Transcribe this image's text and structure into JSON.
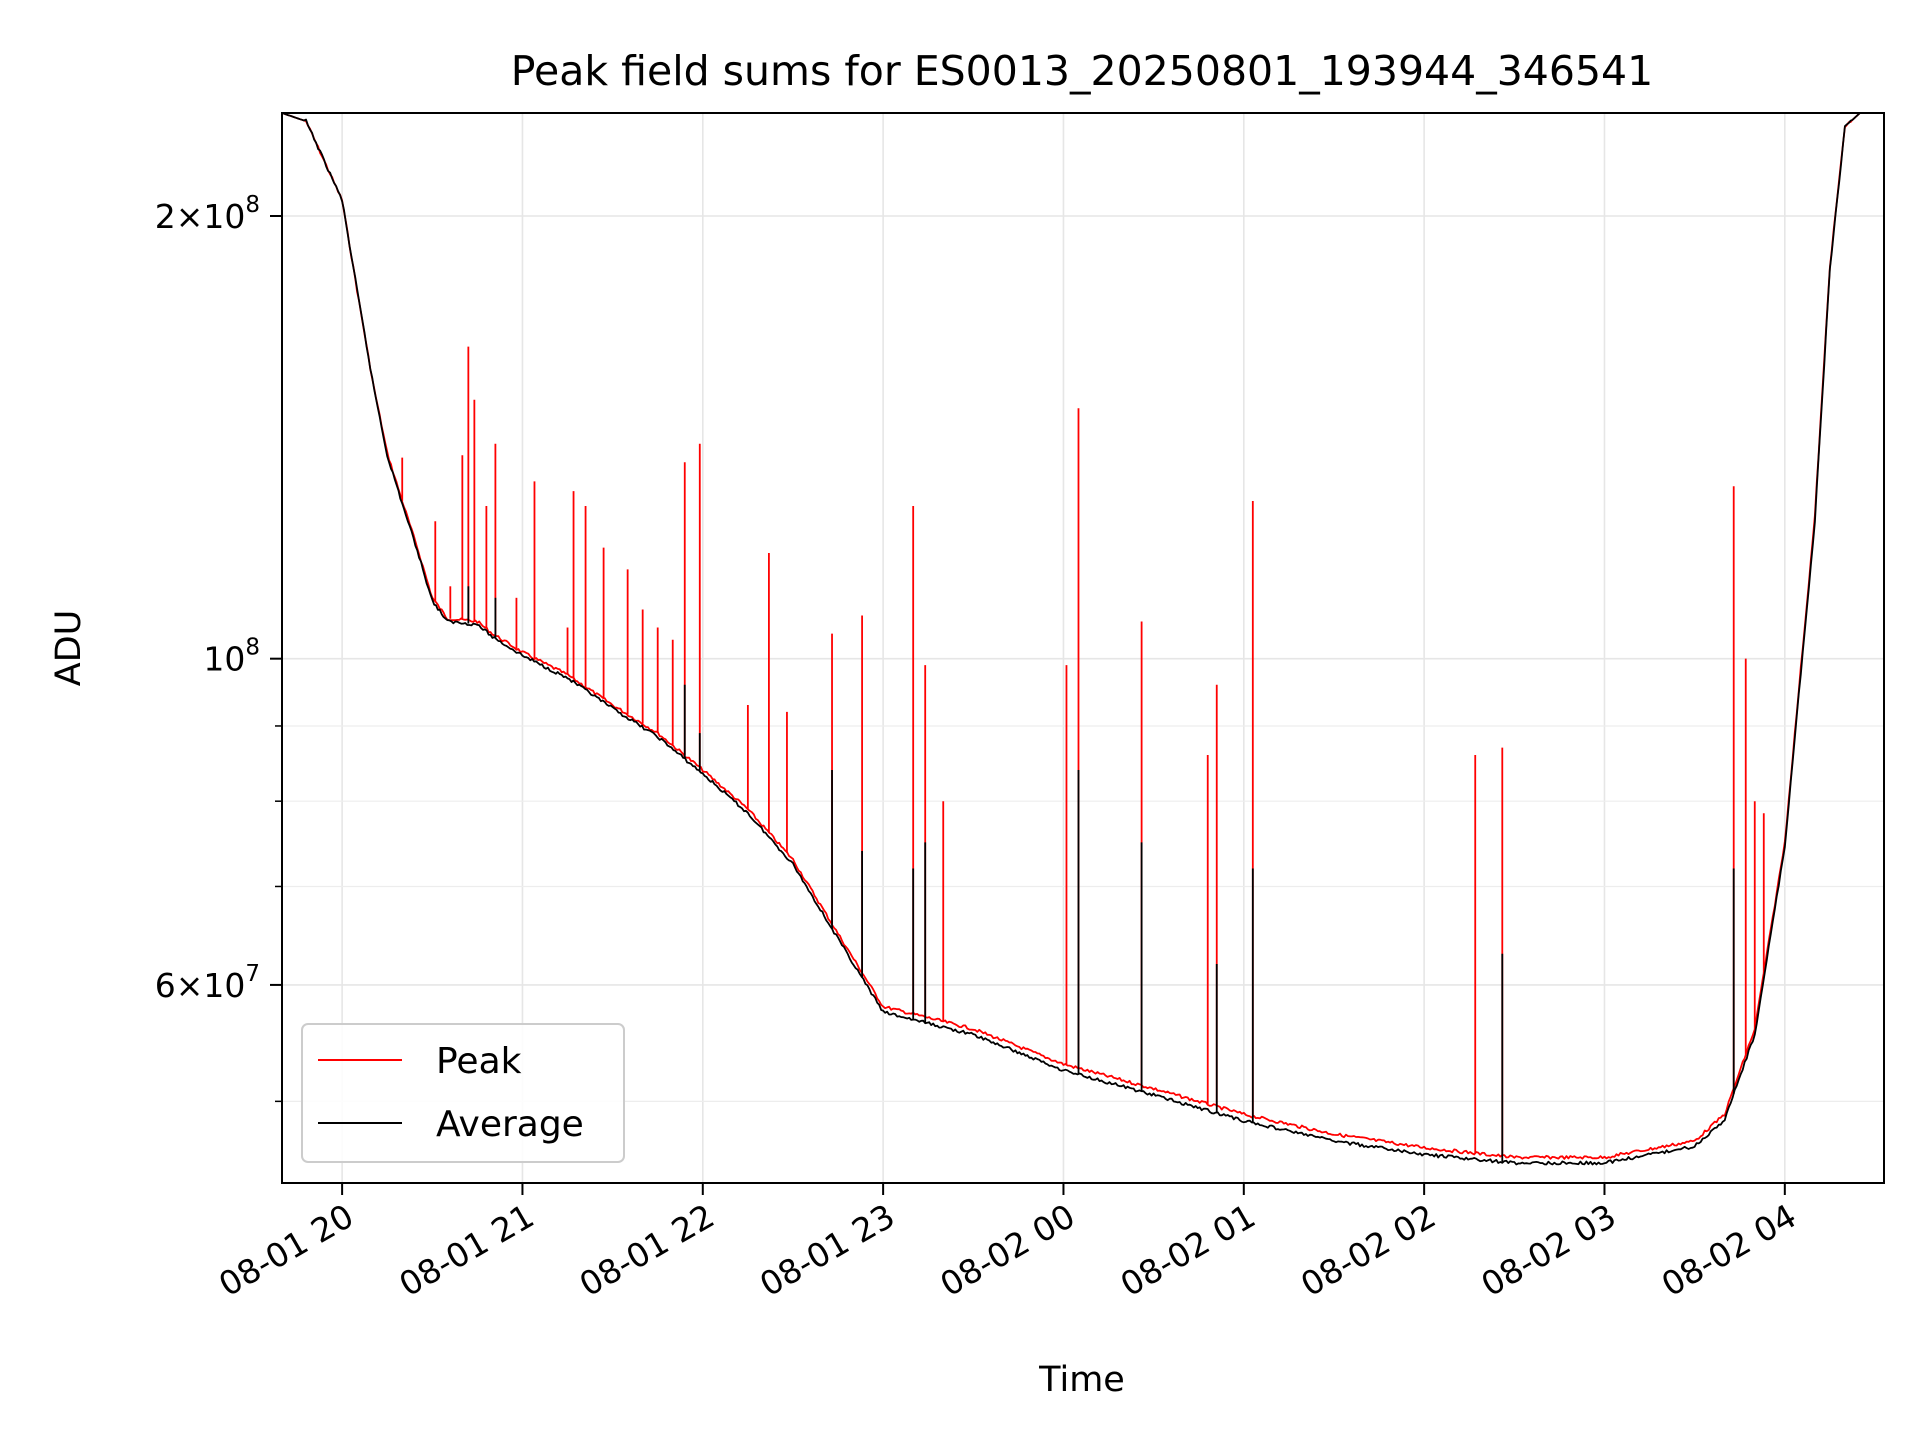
{
  "chart_data": {
    "type": "line",
    "title": "Peak field sums for ES0013_20250801_193944_346541",
    "xlabel": "Time",
    "ylabel": "ADU",
    "y_scale": "log",
    "ylim": [
      44000000,
      235000000
    ],
    "xlim": [
      "2025-08-01 19:40",
      "2025-08-02 04:33"
    ],
    "grid": true,
    "legend_position": "lower-left",
    "x_ticks": [
      {
        "t": "2025-08-01 20:00",
        "label": "08-01 20"
      },
      {
        "t": "2025-08-01 21:00",
        "label": "08-01 21"
      },
      {
        "t": "2025-08-01 22:00",
        "label": "08-01 22"
      },
      {
        "t": "2025-08-01 23:00",
        "label": "08-01 23"
      },
      {
        "t": "2025-08-02 00:00",
        "label": "08-02 00"
      },
      {
        "t": "2025-08-02 01:00",
        "label": "08-02 01"
      },
      {
        "t": "2025-08-02 02:00",
        "label": "08-02 02"
      },
      {
        "t": "2025-08-02 03:00",
        "label": "08-02 03"
      },
      {
        "t": "2025-08-02 04:00",
        "label": "08-02 04"
      }
    ],
    "y_major_ticks": [
      {
        "value": 200000000,
        "mant": "2×10",
        "exp": "8"
      },
      {
        "value": 100000000,
        "mant": "10",
        "exp": "8"
      },
      {
        "value": 60000000,
        "mant": "6×10",
        "exp": "7"
      }
    ],
    "y_minor_ticks": [
      50000000,
      70000000,
      80000000,
      90000000,
      300000000
    ],
    "series": [
      {
        "name": "Peak",
        "color": "#ff0000",
        "points": [
          [
            "2025-08-01 19:40",
            235000000
          ],
          [
            "2025-08-01 19:48",
            232000000
          ],
          [
            "2025-08-01 20:00",
            205000000
          ],
          [
            "2025-08-01 20:05",
            178000000
          ],
          [
            "2025-08-01 20:10",
            155000000
          ],
          [
            "2025-08-01 20:15",
            138000000
          ],
          [
            "2025-08-01 20:20",
            128000000
          ],
          [
            "2025-08-01 20:25",
            119000000
          ],
          [
            "2025-08-01 20:30",
            110000000
          ],
          [
            "2025-08-01 20:35",
            106500000
          ],
          [
            "2025-08-01 20:45",
            106000000
          ],
          [
            "2025-08-01 20:50",
            104000000
          ],
          [
            "2025-08-01 21:00",
            101000000
          ],
          [
            "2025-08-01 21:15",
            97500000
          ],
          [
            "2025-08-01 21:30",
            93000000
          ],
          [
            "2025-08-01 21:45",
            89000000
          ],
          [
            "2025-08-01 22:00",
            84000000
          ],
          [
            "2025-08-01 22:15",
            79000000
          ],
          [
            "2025-08-01 22:30",
            73000000
          ],
          [
            "2025-08-01 22:45",
            65000000
          ],
          [
            "2025-08-01 23:00",
            58000000
          ],
          [
            "2025-08-01 23:30",
            56000000
          ],
          [
            "2025-08-02 00:00",
            53000000
          ],
          [
            "2025-08-02 00:30",
            51000000
          ],
          [
            "2025-08-02 01:00",
            49000000
          ],
          [
            "2025-08-02 01:30",
            47500000
          ],
          [
            "2025-08-02 02:00",
            46500000
          ],
          [
            "2025-08-02 02:30",
            45800000
          ],
          [
            "2025-08-02 03:00",
            45800000
          ],
          [
            "2025-08-02 03:30",
            47000000
          ],
          [
            "2025-08-02 03:40",
            49000000
          ],
          [
            "2025-08-02 03:50",
            56000000
          ],
          [
            "2025-08-02 04:00",
            75000000
          ],
          [
            "2025-08-02 04:10",
            125000000
          ],
          [
            "2025-08-02 04:15",
            185000000
          ],
          [
            "2025-08-02 04:20",
            230000000
          ],
          [
            "2025-08-02 04:25",
            235000000
          ],
          [
            "2025-08-02 04:33",
            235000000
          ]
        ],
        "spikes": [
          [
            "2025-08-01 20:20",
            137000000
          ],
          [
            "2025-08-01 20:31",
            124000000
          ],
          [
            "2025-08-01 20:36",
            112000000
          ],
          [
            "2025-08-01 20:40",
            137500000
          ],
          [
            "2025-08-01 20:42",
            163000000
          ],
          [
            "2025-08-01 20:44",
            150000000
          ],
          [
            "2025-08-01 20:48",
            127000000
          ],
          [
            "2025-08-01 20:51",
            140000000
          ],
          [
            "2025-08-01 20:58",
            110000000
          ],
          [
            "2025-08-01 21:04",
            132000000
          ],
          [
            "2025-08-01 21:15",
            105000000
          ],
          [
            "2025-08-01 21:17",
            130000000
          ],
          [
            "2025-08-01 21:21",
            127000000
          ],
          [
            "2025-08-01 21:27",
            119000000
          ],
          [
            "2025-08-01 21:35",
            115000000
          ],
          [
            "2025-08-01 21:40",
            108000000
          ],
          [
            "2025-08-01 21:45",
            105000000
          ],
          [
            "2025-08-01 21:50",
            103000000
          ],
          [
            "2025-08-01 21:54",
            136000000
          ],
          [
            "2025-08-01 21:59",
            140000000
          ],
          [
            "2025-08-01 22:15",
            93000000
          ],
          [
            "2025-08-01 22:22",
            118000000
          ],
          [
            "2025-08-01 22:28",
            92000000
          ],
          [
            "2025-08-01 22:43",
            104000000
          ],
          [
            "2025-08-01 22:53",
            107000000
          ],
          [
            "2025-08-01 23:10",
            127000000
          ],
          [
            "2025-08-01 23:14",
            99000000
          ],
          [
            "2025-08-01 23:20",
            80000000
          ],
          [
            "2025-08-02 00:01",
            99000000
          ],
          [
            "2025-08-02 00:05",
            148000000
          ],
          [
            "2025-08-02 00:26",
            106000000
          ],
          [
            "2025-08-02 00:48",
            86000000
          ],
          [
            "2025-08-02 00:51",
            96000000
          ],
          [
            "2025-08-02 01:03",
            128000000
          ],
          [
            "2025-08-02 02:17",
            86000000
          ],
          [
            "2025-08-02 02:26",
            87000000
          ],
          [
            "2025-08-02 03:43",
            131000000
          ],
          [
            "2025-08-02 03:47",
            100000000
          ],
          [
            "2025-08-02 03:50",
            80000000
          ],
          [
            "2025-08-02 03:53",
            78500000
          ]
        ]
      },
      {
        "name": "Average",
        "color": "#000000",
        "points": [
          [
            "2025-08-01 19:40",
            235000000
          ],
          [
            "2025-08-01 19:48",
            232000000
          ],
          [
            "2025-08-01 20:00",
            205000000
          ],
          [
            "2025-08-01 20:05",
            178000000
          ],
          [
            "2025-08-01 20:10",
            155000000
          ],
          [
            "2025-08-01 20:15",
            137500000
          ],
          [
            "2025-08-01 20:20",
            127500000
          ],
          [
            "2025-08-01 20:25",
            118500000
          ],
          [
            "2025-08-01 20:30",
            109500000
          ],
          [
            "2025-08-01 20:35",
            106000000
          ],
          [
            "2025-08-01 20:45",
            105500000
          ],
          [
            "2025-08-01 20:50",
            103500000
          ],
          [
            "2025-08-01 21:00",
            100500000
          ],
          [
            "2025-08-01 21:15",
            97000000
          ],
          [
            "2025-08-01 21:30",
            92500000
          ],
          [
            "2025-08-01 21:45",
            88500000
          ],
          [
            "2025-08-01 22:00",
            83500000
          ],
          [
            "2025-08-01 22:15",
            78500000
          ],
          [
            "2025-08-01 22:30",
            72500000
          ],
          [
            "2025-08-01 22:45",
            64500000
          ],
          [
            "2025-08-01 23:00",
            57500000
          ],
          [
            "2025-08-01 23:30",
            55500000
          ],
          [
            "2025-08-02 00:00",
            52500000
          ],
          [
            "2025-08-02 00:30",
            50500000
          ],
          [
            "2025-08-02 01:00",
            48500000
          ],
          [
            "2025-08-02 01:30",
            47000000
          ],
          [
            "2025-08-02 02:00",
            46000000
          ],
          [
            "2025-08-02 02:30",
            45400000
          ],
          [
            "2025-08-02 03:00",
            45400000
          ],
          [
            "2025-08-02 03:30",
            46600000
          ],
          [
            "2025-08-02 03:40",
            48600000
          ],
          [
            "2025-08-02 03:50",
            55500000
          ],
          [
            "2025-08-02 04:00",
            74500000
          ],
          [
            "2025-08-02 04:10",
            124000000
          ],
          [
            "2025-08-02 04:15",
            184000000
          ],
          [
            "2025-08-02 04:20",
            230000000
          ],
          [
            "2025-08-02 04:25",
            235000000
          ],
          [
            "2025-08-02 04:33",
            235000000
          ]
        ],
        "spikes": [
          [
            "2025-08-01 20:42",
            112000000
          ],
          [
            "2025-08-01 20:51",
            110000000
          ],
          [
            "2025-08-01 21:54",
            96000000
          ],
          [
            "2025-08-01 21:59",
            89000000
          ],
          [
            "2025-08-01 22:43",
            84000000
          ],
          [
            "2025-08-01 22:53",
            74000000
          ],
          [
            "2025-08-01 23:10",
            72000000
          ],
          [
            "2025-08-01 23:14",
            75000000
          ],
          [
            "2025-08-02 00:05",
            84000000
          ],
          [
            "2025-08-02 00:26",
            75000000
          ],
          [
            "2025-08-02 00:51",
            62000000
          ],
          [
            "2025-08-02 01:03",
            72000000
          ],
          [
            "2025-08-02 02:26",
            63000000
          ],
          [
            "2025-08-02 03:43",
            72000000
          ]
        ]
      }
    ]
  }
}
